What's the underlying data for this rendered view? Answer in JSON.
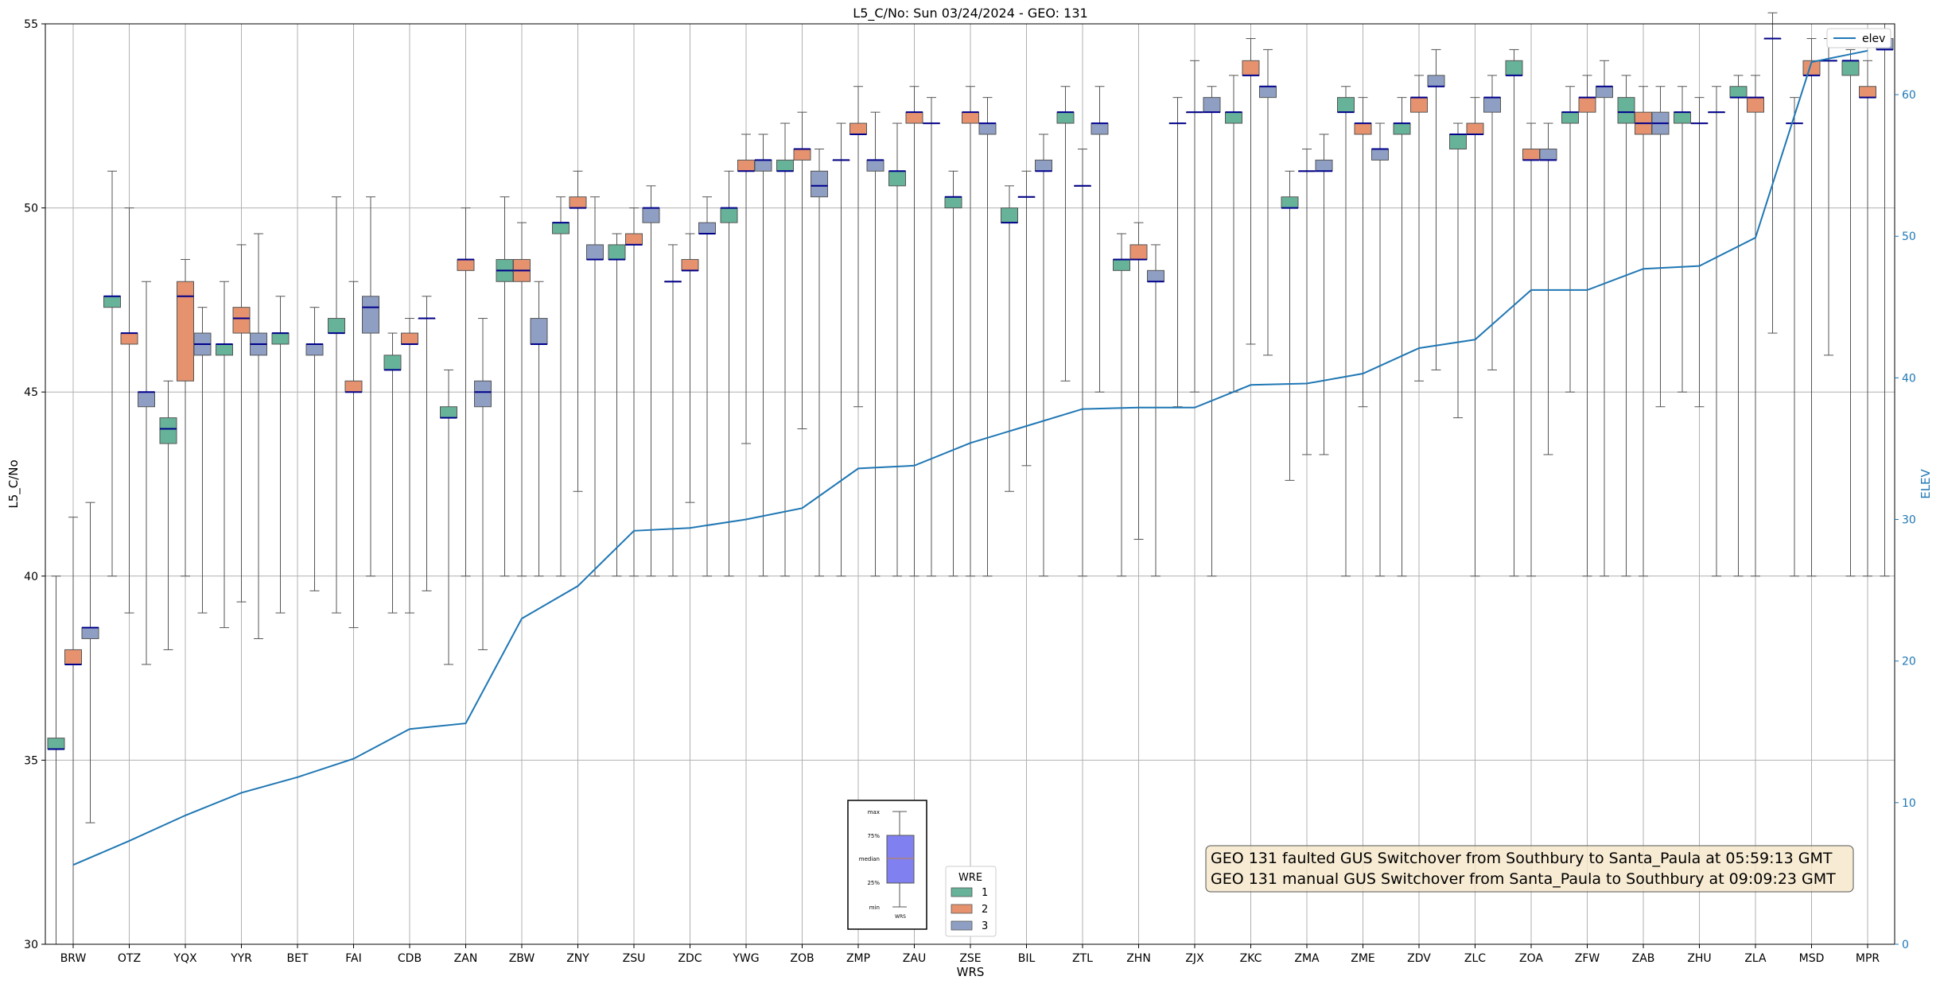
{
  "chart_data": {
    "type": "box",
    "title": "L5_C/No: Sun 03/24/2024 - GEO: 131",
    "xlabel": "WRS",
    "ylabel": "L5_C/No",
    "y2label": "ELEV",
    "ylim": [
      30,
      55
    ],
    "y2lim": [
      0,
      65
    ],
    "yticks": [
      30,
      35,
      40,
      45,
      50,
      55
    ],
    "y2ticks": [
      0,
      10,
      20,
      30,
      40,
      50,
      60
    ],
    "grid": true,
    "categories": [
      "BRW",
      "OTZ",
      "YQX",
      "YYR",
      "BET",
      "FAI",
      "CDB",
      "ZAN",
      "ZBW",
      "ZNY",
      "ZSU",
      "ZDC",
      "YWG",
      "ZOB",
      "ZMP",
      "ZAU",
      "ZSE",
      "BIL",
      "ZTL",
      "ZHN",
      "ZJX",
      "ZKC",
      "ZMA",
      "ZME",
      "ZDV",
      "ZLC",
      "ZOA",
      "ZFW",
      "ZAB",
      "ZHU",
      "ZLA",
      "MSD",
      "MPR"
    ],
    "colors": {
      "1": "#66b399",
      "2": "#e6926f",
      "3": "#8f9fc4",
      "median": "#00008b",
      "elev": "#1f77b4",
      "whisker": "#555555"
    },
    "legend": {
      "title": "WRE",
      "entries": [
        "1",
        "2",
        "3"
      ],
      "placement": "bottom-center"
    },
    "legend2": {
      "entries": [
        "elev"
      ],
      "placement": "top-right"
    },
    "boxes": [
      {
        "cat": "BRW",
        "wre": 1,
        "min": 30,
        "q1": 35.3,
        "med": 35.3,
        "q3": 35.6,
        "max": 40
      },
      {
        "cat": "BRW",
        "wre": 2,
        "min": 30,
        "q1": 37.6,
        "med": 37.6,
        "q3": 38,
        "max": 41.6
      },
      {
        "cat": "BRW",
        "wre": 3,
        "min": 33.3,
        "q1": 38.3,
        "med": 38.6,
        "q3": 38.6,
        "max": 42
      },
      {
        "cat": "OTZ",
        "wre": 1,
        "min": 40,
        "q1": 47.3,
        "med": 47.6,
        "q3": 47.6,
        "max": 51
      },
      {
        "cat": "OTZ",
        "wre": 2,
        "min": 39,
        "q1": 46.3,
        "med": 46.6,
        "q3": 46.6,
        "max": 50
      },
      {
        "cat": "OTZ",
        "wre": 3,
        "min": 37.6,
        "q1": 44.6,
        "med": 45,
        "q3": 45,
        "max": 48
      },
      {
        "cat": "YQX",
        "wre": 1,
        "min": 38,
        "q1": 43.6,
        "med": 44,
        "q3": 44.3,
        "max": 45.3
      },
      {
        "cat": "YQX",
        "wre": 2,
        "min": 40,
        "q1": 45.3,
        "med": 47.6,
        "q3": 48,
        "max": 48.6
      },
      {
        "cat": "YQX",
        "wre": 3,
        "min": 39,
        "q1": 46,
        "med": 46.3,
        "q3": 46.6,
        "max": 47.3
      },
      {
        "cat": "YYR",
        "wre": 1,
        "min": 38.6,
        "q1": 46,
        "med": 46.3,
        "q3": 46.3,
        "max": 48
      },
      {
        "cat": "YYR",
        "wre": 2,
        "min": 39.3,
        "q1": 46.6,
        "med": 47,
        "q3": 47.3,
        "max": 49
      },
      {
        "cat": "YYR",
        "wre": 3,
        "min": 38.3,
        "q1": 46,
        "med": 46.3,
        "q3": 46.6,
        "max": 49.3
      },
      {
        "cat": "BET",
        "wre": 1,
        "min": 39,
        "q1": 46.3,
        "med": 46.6,
        "q3": 46.6,
        "max": 47.6
      },
      {
        "cat": "BET",
        "wre": 3,
        "min": 39.6,
        "q1": 46,
        "med": 46.3,
        "q3": 46.3,
        "max": 47.3
      },
      {
        "cat": "FAI",
        "wre": 1,
        "min": 39,
        "q1": 46.6,
        "med": 46.6,
        "q3": 47,
        "max": 50.3
      },
      {
        "cat": "FAI",
        "wre": 2,
        "min": 38.6,
        "q1": 45,
        "med": 45,
        "q3": 45.3,
        "max": 48
      },
      {
        "cat": "FAI",
        "wre": 3,
        "min": 40,
        "q1": 46.6,
        "med": 47.3,
        "q3": 47.6,
        "max": 50.3
      },
      {
        "cat": "CDB",
        "wre": 1,
        "min": 39,
        "q1": 45.6,
        "med": 45.6,
        "q3": 46,
        "max": 46.6
      },
      {
        "cat": "CDB",
        "wre": 2,
        "min": 39,
        "q1": 46.3,
        "med": 46.3,
        "q3": 46.6,
        "max": 47
      },
      {
        "cat": "CDB",
        "wre": 3,
        "min": 39.6,
        "q1": 47,
        "med": 47,
        "q3": 47,
        "max": 47.6
      },
      {
        "cat": "ZAN",
        "wre": 1,
        "min": 37.6,
        "q1": 44.3,
        "med": 44.3,
        "q3": 44.6,
        "max": 45.6
      },
      {
        "cat": "ZAN",
        "wre": 2,
        "min": 40,
        "q1": 48.3,
        "med": 48.6,
        "q3": 48.6,
        "max": 50
      },
      {
        "cat": "ZAN",
        "wre": 3,
        "min": 38,
        "q1": 44.6,
        "med": 45,
        "q3": 45.3,
        "max": 47
      },
      {
        "cat": "ZBW",
        "wre": 1,
        "min": 40,
        "q1": 48,
        "med": 48.3,
        "q3": 48.6,
        "max": 50.3
      },
      {
        "cat": "ZBW",
        "wre": 2,
        "min": 40,
        "q1": 48,
        "med": 48.3,
        "q3": 48.6,
        "max": 49.6
      },
      {
        "cat": "ZBW",
        "wre": 3,
        "min": 40,
        "q1": 46.3,
        "med": 46.3,
        "q3": 47,
        "max": 48
      },
      {
        "cat": "ZNY",
        "wre": 1,
        "min": 40,
        "q1": 49.3,
        "med": 49.6,
        "q3": 49.6,
        "max": 50.3
      },
      {
        "cat": "ZNY",
        "wre": 2,
        "min": 42.3,
        "q1": 50,
        "med": 50,
        "q3": 50.3,
        "max": 51
      },
      {
        "cat": "ZNY",
        "wre": 3,
        "min": 40,
        "q1": 48.6,
        "med": 48.6,
        "q3": 49,
        "max": 50.3
      },
      {
        "cat": "ZSU",
        "wre": 1,
        "min": 40,
        "q1": 48.6,
        "med": 48.6,
        "q3": 49,
        "max": 49.3
      },
      {
        "cat": "ZSU",
        "wre": 2,
        "min": 40,
        "q1": 49,
        "med": 49,
        "q3": 49.3,
        "max": 50
      },
      {
        "cat": "ZSU",
        "wre": 3,
        "min": 40,
        "q1": 49.6,
        "med": 50,
        "q3": 50,
        "max": 50.6
      },
      {
        "cat": "ZDC",
        "wre": 1,
        "min": 40,
        "q1": 48,
        "med": 48,
        "q3": 48,
        "max": 49
      },
      {
        "cat": "ZDC",
        "wre": 2,
        "min": 42,
        "q1": 48.3,
        "med": 48.3,
        "q3": 48.6,
        "max": 49.3
      },
      {
        "cat": "ZDC",
        "wre": 3,
        "min": 40,
        "q1": 49.3,
        "med": 49.3,
        "q3": 49.6,
        "max": 50.3
      },
      {
        "cat": "YWG",
        "wre": 1,
        "min": 40,
        "q1": 49.6,
        "med": 50,
        "q3": 50,
        "max": 51
      },
      {
        "cat": "YWG",
        "wre": 2,
        "min": 43.6,
        "q1": 51,
        "med": 51,
        "q3": 51.3,
        "max": 52
      },
      {
        "cat": "YWG",
        "wre": 3,
        "min": 40,
        "q1": 51,
        "med": 51.3,
        "q3": 51.3,
        "max": 52
      },
      {
        "cat": "ZOB",
        "wre": 1,
        "min": 40,
        "q1": 51,
        "med": 51,
        "q3": 51.3,
        "max": 52.3
      },
      {
        "cat": "ZOB",
        "wre": 2,
        "min": 44,
        "q1": 51.3,
        "med": 51.6,
        "q3": 51.6,
        "max": 52.6
      },
      {
        "cat": "ZOB",
        "wre": 3,
        "min": 40,
        "q1": 50.3,
        "med": 50.6,
        "q3": 51,
        "max": 51.6
      },
      {
        "cat": "ZMP",
        "wre": 1,
        "min": 40,
        "q1": 51.3,
        "med": 51.3,
        "q3": 51.3,
        "max": 52.3
      },
      {
        "cat": "ZMP",
        "wre": 2,
        "min": 44.6,
        "q1": 52,
        "med": 52,
        "q3": 52.3,
        "max": 53.3
      },
      {
        "cat": "ZMP",
        "wre": 3,
        "min": 40,
        "q1": 51,
        "med": 51.3,
        "q3": 51.3,
        "max": 52.6
      },
      {
        "cat": "ZAU",
        "wre": 1,
        "min": 40,
        "q1": 50.6,
        "med": 51,
        "q3": 51,
        "max": 52.3
      },
      {
        "cat": "ZAU",
        "wre": 2,
        "min": 40,
        "q1": 52.3,
        "med": 52.6,
        "q3": 52.6,
        "max": 53.3
      },
      {
        "cat": "ZAU",
        "wre": 3,
        "min": 40,
        "q1": 52.3,
        "med": 52.3,
        "q3": 52.3,
        "max": 53
      },
      {
        "cat": "ZSE",
        "wre": 1,
        "min": 40,
        "q1": 50,
        "med": 50.3,
        "q3": 50.3,
        "max": 51
      },
      {
        "cat": "ZSE",
        "wre": 2,
        "min": 40,
        "q1": 52.3,
        "med": 52.6,
        "q3": 52.6,
        "max": 53.3
      },
      {
        "cat": "ZSE",
        "wre": 3,
        "min": 40,
        "q1": 52,
        "med": 52.3,
        "q3": 52.3,
        "max": 53
      },
      {
        "cat": "BIL",
        "wre": 1,
        "min": 42.3,
        "q1": 49.6,
        "med": 49.6,
        "q3": 50,
        "max": 50.6
      },
      {
        "cat": "BIL",
        "wre": 2,
        "min": 43,
        "q1": 50.3,
        "med": 50.3,
        "q3": 50.3,
        "max": 51
      },
      {
        "cat": "BIL",
        "wre": 3,
        "min": 40,
        "q1": 51,
        "med": 51,
        "q3": 51.3,
        "max": 52
      },
      {
        "cat": "ZTL",
        "wre": 1,
        "min": 45.3,
        "q1": 52.3,
        "med": 52.6,
        "q3": 52.6,
        "max": 53.3
      },
      {
        "cat": "ZTL",
        "wre": 2,
        "min": 40,
        "q1": 50.6,
        "med": 50.6,
        "q3": 50.6,
        "max": 51.6
      },
      {
        "cat": "ZTL",
        "wre": 3,
        "min": 45,
        "q1": 52,
        "med": 52.3,
        "q3": 52.3,
        "max": 53.3
      },
      {
        "cat": "ZHN",
        "wre": 1,
        "min": 40,
        "q1": 48.3,
        "med": 48.6,
        "q3": 48.6,
        "max": 49.3
      },
      {
        "cat": "ZHN",
        "wre": 2,
        "min": 41,
        "q1": 48.6,
        "med": 48.6,
        "q3": 49,
        "max": 49.6
      },
      {
        "cat": "ZHN",
        "wre": 3,
        "min": 40,
        "q1": 48,
        "med": 48,
        "q3": 48.3,
        "max": 49
      },
      {
        "cat": "ZJX",
        "wre": 1,
        "min": 44.6,
        "q1": 52.3,
        "med": 52.3,
        "q3": 52.3,
        "max": 53
      },
      {
        "cat": "ZJX",
        "wre": 2,
        "min": 45,
        "q1": 52.6,
        "med": 52.6,
        "q3": 52.6,
        "max": 54
      },
      {
        "cat": "ZJX",
        "wre": 3,
        "min": 40,
        "q1": 52.6,
        "med": 52.6,
        "q3": 53,
        "max": 53.3
      },
      {
        "cat": "ZKC",
        "wre": 1,
        "min": 45,
        "q1": 52.3,
        "med": 52.6,
        "q3": 52.6,
        "max": 53.6
      },
      {
        "cat": "ZKC",
        "wre": 2,
        "min": 46.3,
        "q1": 53.6,
        "med": 53.6,
        "q3": 54,
        "max": 54.6
      },
      {
        "cat": "ZKC",
        "wre": 3,
        "min": 46,
        "q1": 53,
        "med": 53.3,
        "q3": 53.3,
        "max": 54.3
      },
      {
        "cat": "ZMA",
        "wre": 1,
        "min": 42.6,
        "q1": 50,
        "med": 50,
        "q3": 50.3,
        "max": 51
      },
      {
        "cat": "ZMA",
        "wre": 2,
        "min": 43.3,
        "q1": 51,
        "med": 51,
        "q3": 51,
        "max": 51.6
      },
      {
        "cat": "ZMA",
        "wre": 3,
        "min": 43.3,
        "q1": 51,
        "med": 51,
        "q3": 51.3,
        "max": 52
      },
      {
        "cat": "ZME",
        "wre": 1,
        "min": 40,
        "q1": 52.6,
        "med": 52.6,
        "q3": 53,
        "max": 53.3
      },
      {
        "cat": "ZME",
        "wre": 2,
        "min": 44.6,
        "q1": 52,
        "med": 52.3,
        "q3": 52.3,
        "max": 53
      },
      {
        "cat": "ZME",
        "wre": 3,
        "min": 40,
        "q1": 51.3,
        "med": 51.6,
        "q3": 51.6,
        "max": 52.3
      },
      {
        "cat": "ZDV",
        "wre": 1,
        "min": 40,
        "q1": 52,
        "med": 52.3,
        "q3": 52.3,
        "max": 53
      },
      {
        "cat": "ZDV",
        "wre": 2,
        "min": 45.3,
        "q1": 52.6,
        "med": 53,
        "q3": 53,
        "max": 53.6
      },
      {
        "cat": "ZDV",
        "wre": 3,
        "min": 45.6,
        "q1": 53.3,
        "med": 53.3,
        "q3": 53.6,
        "max": 54.3
      },
      {
        "cat": "ZLC",
        "wre": 1,
        "min": 44.3,
        "q1": 51.6,
        "med": 52,
        "q3": 52,
        "max": 52.3
      },
      {
        "cat": "ZLC",
        "wre": 2,
        "min": 40,
        "q1": 52,
        "med": 52,
        "q3": 52.3,
        "max": 53
      },
      {
        "cat": "ZLC",
        "wre": 3,
        "min": 45.6,
        "q1": 52.6,
        "med": 53,
        "q3": 53,
        "max": 53.6
      },
      {
        "cat": "ZOA",
        "wre": 1,
        "min": 40,
        "q1": 53.6,
        "med": 53.6,
        "q3": 54,
        "max": 54.3
      },
      {
        "cat": "ZOA",
        "wre": 2,
        "min": 40,
        "q1": 51.3,
        "med": 51.3,
        "q3": 51.6,
        "max": 52.3
      },
      {
        "cat": "ZOA",
        "wre": 3,
        "min": 43.3,
        "q1": 51.3,
        "med": 51.3,
        "q3": 51.6,
        "max": 52.3
      },
      {
        "cat": "ZFW",
        "wre": 1,
        "min": 45,
        "q1": 52.3,
        "med": 52.6,
        "q3": 52.6,
        "max": 53.3
      },
      {
        "cat": "ZFW",
        "wre": 2,
        "min": 40,
        "q1": 52.6,
        "med": 53,
        "q3": 53,
        "max": 53.6
      },
      {
        "cat": "ZFW",
        "wre": 3,
        "min": 40,
        "q1": 53,
        "med": 53.3,
        "q3": 53.3,
        "max": 54
      },
      {
        "cat": "ZAB",
        "wre": 1,
        "min": 40,
        "q1": 52.3,
        "med": 52.6,
        "q3": 53,
        "max": 53.6
      },
      {
        "cat": "ZAB",
        "wre": 2,
        "min": 40,
        "q1": 52,
        "med": 52.3,
        "q3": 52.6,
        "max": 53.3
      },
      {
        "cat": "ZAB",
        "wre": 3,
        "min": 44.6,
        "q1": 52,
        "med": 52.3,
        "q3": 52.6,
        "max": 53.3
      },
      {
        "cat": "ZHU",
        "wre": 1,
        "min": 45,
        "q1": 52.3,
        "med": 52.6,
        "q3": 52.6,
        "max": 53.3
      },
      {
        "cat": "ZHU",
        "wre": 2,
        "min": 44.6,
        "q1": 52.3,
        "med": 52.3,
        "q3": 52.3,
        "max": 53
      },
      {
        "cat": "ZHU",
        "wre": 3,
        "min": 40,
        "q1": 52.6,
        "med": 52.6,
        "q3": 52.6,
        "max": 53.3
      },
      {
        "cat": "ZLA",
        "wre": 1,
        "min": 40,
        "q1": 53,
        "med": 53,
        "q3": 53.3,
        "max": 53.6
      },
      {
        "cat": "ZLA",
        "wre": 2,
        "min": 40,
        "q1": 52.6,
        "med": 53,
        "q3": 53,
        "max": 53.6
      },
      {
        "cat": "ZLA",
        "wre": 3,
        "min": 46.6,
        "q1": 54.6,
        "med": 54.6,
        "q3": 54.6,
        "max": 55.3
      },
      {
        "cat": "MSD",
        "wre": 1,
        "min": 40,
        "q1": 52.3,
        "med": 52.3,
        "q3": 52.3,
        "max": 53
      },
      {
        "cat": "MSD",
        "wre": 2,
        "min": 40,
        "q1": 53.6,
        "med": 53.6,
        "q3": 54,
        "max": 54.6
      },
      {
        "cat": "MSD",
        "wre": 3,
        "min": 46,
        "q1": 54,
        "med": 54,
        "q3": 54,
        "max": 54.6
      },
      {
        "cat": "MPR",
        "wre": 1,
        "min": 40,
        "q1": 53.6,
        "med": 54,
        "q3": 54,
        "max": 54.3
      },
      {
        "cat": "MPR",
        "wre": 2,
        "min": 40,
        "q1": 53,
        "med": 53,
        "q3": 53.3,
        "max": 54
      },
      {
        "cat": "MPR",
        "wre": 3,
        "min": 40,
        "q1": 54.3,
        "med": 54.3,
        "q3": 54.6,
        "max": 55
      }
    ],
    "elev_series": {
      "name": "elev",
      "values": [
        5.6,
        7.3,
        9.1,
        10.7,
        11.8,
        13.1,
        15.2,
        15.6,
        23,
        25.3,
        29.2,
        29.4,
        30,
        30.8,
        33.6,
        33.8,
        35.4,
        36.6,
        37.8,
        37.9,
        37.9,
        39.5,
        39.6,
        40.3,
        42.1,
        42.7,
        46.2,
        46.2,
        47.7,
        47.9,
        49.9,
        62.3,
        63.1
      ]
    },
    "annotation": [
      "GEO 131 faulted GUS Switchover from Southbury to Santa_Paula at 05:59:13 GMT",
      "GEO 131 manual GUS Switchover from Santa_Paula to Southbury at 09:09:23 GMT"
    ],
    "inset_legend": {
      "labels": [
        "max",
        "75%",
        "median",
        "25%",
        "min"
      ],
      "xlabel": "WRS"
    }
  }
}
